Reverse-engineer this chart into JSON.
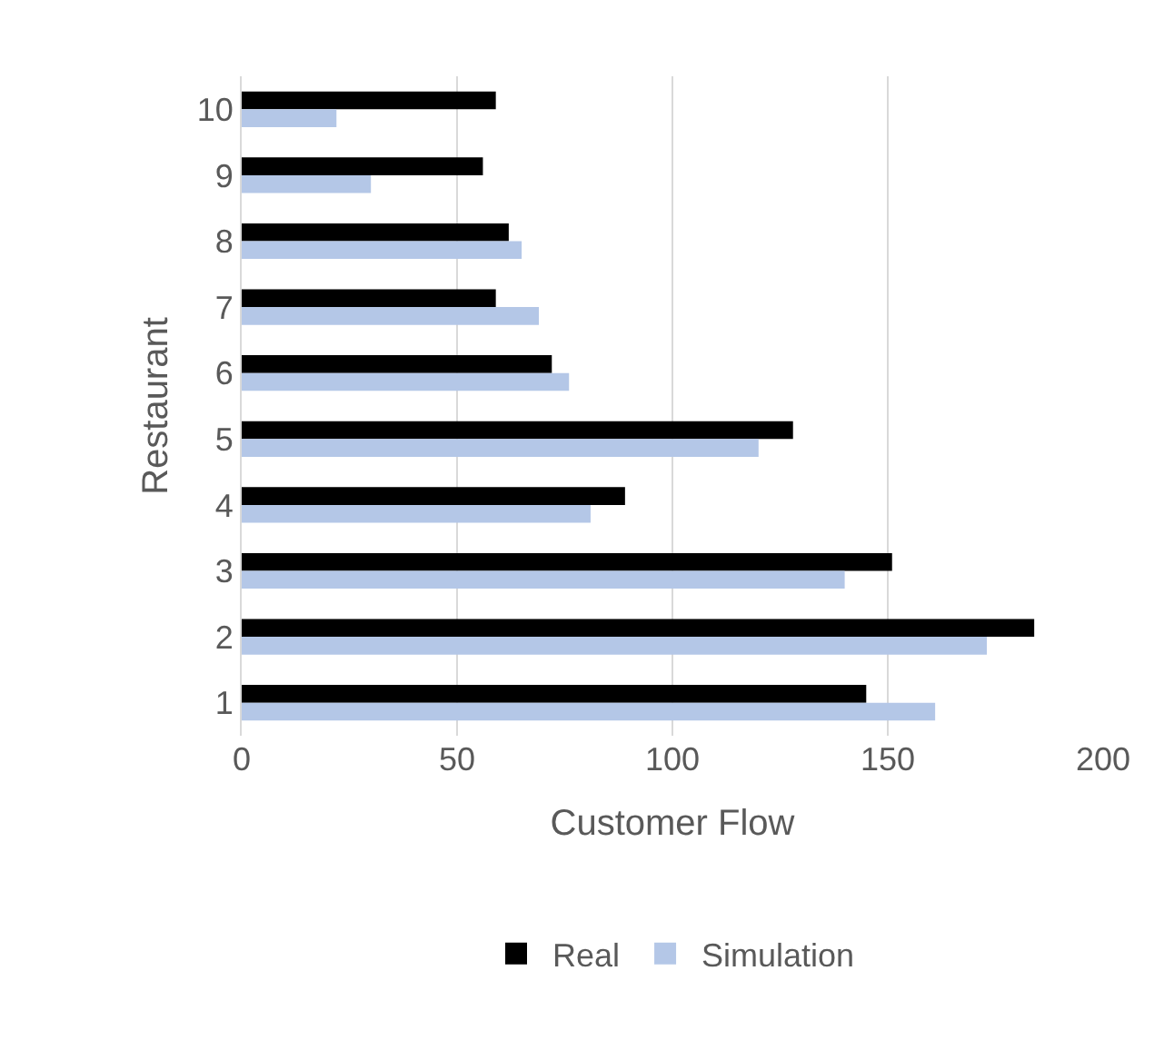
{
  "chart_data": {
    "type": "bar",
    "orientation": "horizontal",
    "xlabel": "Customer Flow",
    "ylabel": "Restaurant",
    "categories": [
      "10",
      "9",
      "8",
      "7",
      "6",
      "5",
      "4",
      "3",
      "2",
      "1"
    ],
    "series": [
      {
        "name": "Real",
        "color": "#000000",
        "values": [
          59,
          56,
          62,
          59,
          72,
          128,
          89,
          151,
          184,
          145
        ]
      },
      {
        "name": "Simulation",
        "color": "#b4c7e7",
        "values": [
          22,
          30,
          65,
          69,
          76,
          120,
          81,
          140,
          173,
          161
        ]
      }
    ],
    "xlim": [
      0,
      200
    ],
    "xticks": [
      0,
      50,
      100,
      150,
      200
    ],
    "grid": "x",
    "legend": "bottom"
  }
}
